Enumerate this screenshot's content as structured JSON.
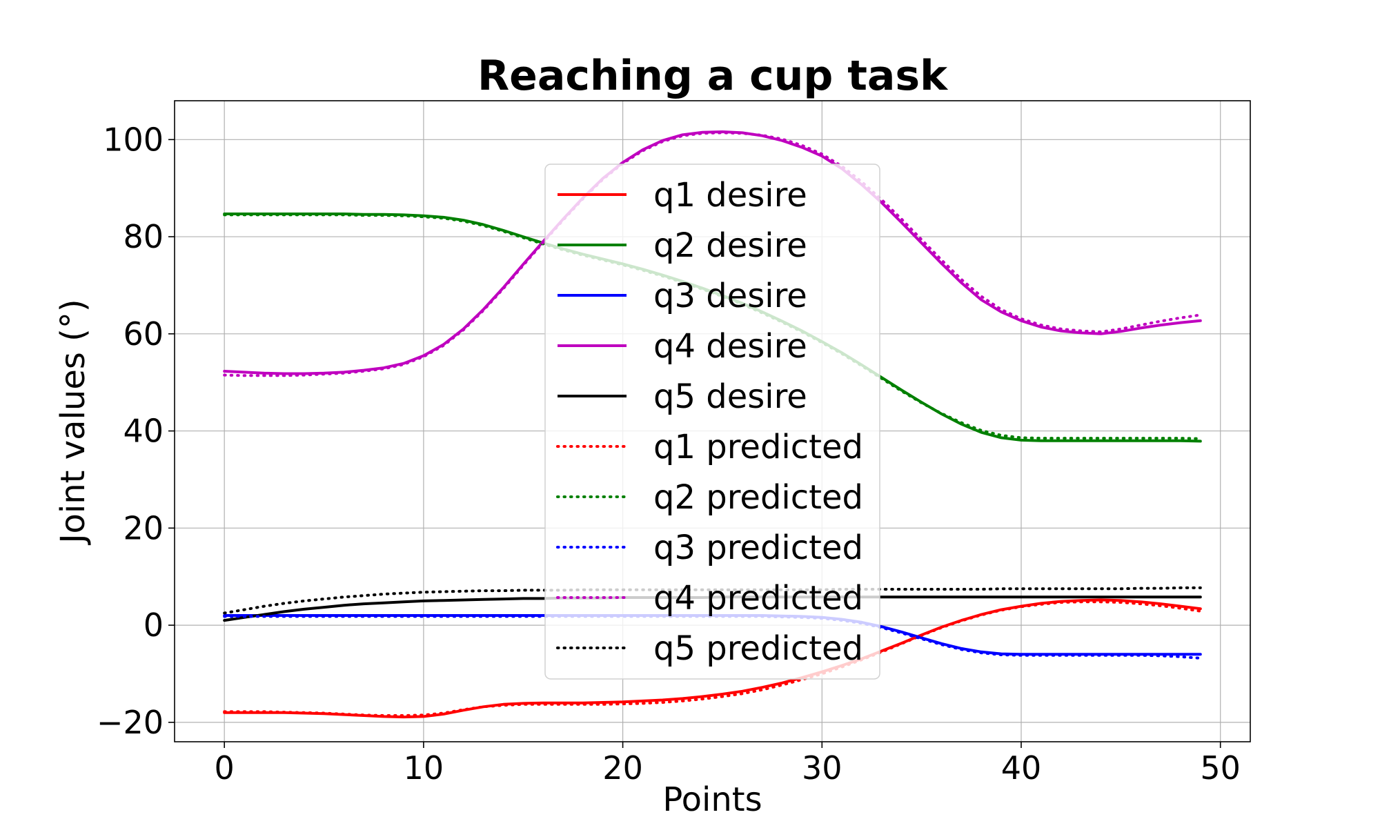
{
  "chart_data": {
    "type": "line",
    "title": "Reaching a cup task",
    "xlabel": "Points",
    "ylabel": "Joint values (°)",
    "xlim": [
      -2.5,
      51.5
    ],
    "ylim": [
      -24,
      108
    ],
    "xticks": [
      0,
      10,
      20,
      30,
      40,
      50
    ],
    "yticks": [
      -20,
      0,
      20,
      40,
      60,
      80,
      100
    ],
    "xtick_labels": [
      "0",
      "10",
      "20",
      "30",
      "40",
      "50"
    ],
    "ytick_labels": [
      "−20",
      "0",
      "20",
      "40",
      "60",
      "80",
      "100"
    ],
    "grid": true,
    "legend_position": "center",
    "x": [
      0,
      1,
      2,
      3,
      4,
      5,
      6,
      7,
      8,
      9,
      10,
      11,
      12,
      13,
      14,
      15,
      16,
      17,
      18,
      19,
      20,
      21,
      22,
      23,
      24,
      25,
      26,
      27,
      28,
      29,
      30,
      31,
      32,
      33,
      34,
      35,
      36,
      37,
      38,
      39,
      40,
      41,
      42,
      43,
      44,
      45,
      46,
      47,
      48,
      49
    ],
    "series": [
      {
        "name": "q1 desire",
        "color": "#ff0000",
        "style": "solid",
        "values": [
          -18.0,
          -18.0,
          -18.0,
          -18.0,
          -18.1,
          -18.2,
          -18.4,
          -18.6,
          -18.8,
          -18.9,
          -18.8,
          -18.3,
          -17.5,
          -16.8,
          -16.3,
          -16.1,
          -16.0,
          -16.0,
          -16.0,
          -15.9,
          -15.8,
          -15.6,
          -15.4,
          -15.1,
          -14.7,
          -14.2,
          -13.6,
          -12.8,
          -11.9,
          -10.8,
          -9.6,
          -8.3,
          -6.9,
          -5.3,
          -3.7,
          -2.0,
          -0.4,
          1.0,
          2.2,
          3.2,
          3.9,
          4.5,
          4.9,
          5.1,
          5.2,
          5.1,
          4.8,
          4.4,
          3.9,
          3.4
        ]
      },
      {
        "name": "q2 desire",
        "color": "#008000",
        "style": "solid",
        "values": [
          84.7,
          84.7,
          84.7,
          84.7,
          84.7,
          84.7,
          84.7,
          84.6,
          84.6,
          84.5,
          84.3,
          84.0,
          83.4,
          82.5,
          81.3,
          80.0,
          78.7,
          77.5,
          76.4,
          75.4,
          74.4,
          73.3,
          72.1,
          70.8,
          69.4,
          67.9,
          66.3,
          64.5,
          62.6,
          60.6,
          58.4,
          56.1,
          53.6,
          51.0,
          48.4,
          45.9,
          43.5,
          41.4,
          39.7,
          38.6,
          38.1,
          38.0,
          38.0,
          38.0,
          38.0,
          38.0,
          38.0,
          38.0,
          38.0,
          37.9
        ]
      },
      {
        "name": "q3 desire",
        "color": "#0000ff",
        "style": "solid",
        "values": [
          2.0,
          2.0,
          2.0,
          2.0,
          2.0,
          2.0,
          2.0,
          2.0,
          2.0,
          2.0,
          2.0,
          2.0,
          2.0,
          2.0,
          2.0,
          2.0,
          2.0,
          2.0,
          2.0,
          2.0,
          2.0,
          2.0,
          2.0,
          2.0,
          2.0,
          2.0,
          2.0,
          2.0,
          1.9,
          1.8,
          1.6,
          1.2,
          0.6,
          -0.3,
          -1.4,
          -2.6,
          -3.8,
          -4.8,
          -5.5,
          -5.9,
          -6.0,
          -6.0,
          -6.0,
          -6.0,
          -6.0,
          -6.0,
          -6.0,
          -6.0,
          -6.0,
          -6.0
        ]
      },
      {
        "name": "q4 desire",
        "color": "#bf00bf",
        "style": "solid",
        "values": [
          52.3,
          52.1,
          51.9,
          51.8,
          51.8,
          51.9,
          52.1,
          52.5,
          53.0,
          53.9,
          55.5,
          57.8,
          61.0,
          65.0,
          69.5,
          74.3,
          79.0,
          83.6,
          88.0,
          92.0,
          95.3,
          97.9,
          99.8,
          101.0,
          101.5,
          101.6,
          101.4,
          100.8,
          99.8,
          98.4,
          96.6,
          94.0,
          90.7,
          87.0,
          82.9,
          78.7,
          74.5,
          70.5,
          67.0,
          64.5,
          62.7,
          61.4,
          60.6,
          60.2,
          60.0,
          60.5,
          61.2,
          61.8,
          62.3,
          62.7
        ]
      },
      {
        "name": "q5 desire",
        "color": "#000000",
        "style": "solid",
        "values": [
          1.0,
          1.6,
          2.2,
          2.8,
          3.3,
          3.7,
          4.1,
          4.4,
          4.6,
          4.8,
          5.0,
          5.1,
          5.2,
          5.3,
          5.4,
          5.5,
          5.5,
          5.6,
          5.6,
          5.6,
          5.7,
          5.7,
          5.7,
          5.7,
          5.7,
          5.8,
          5.8,
          5.8,
          5.8,
          5.8,
          5.8,
          5.8,
          5.8,
          5.8,
          5.8,
          5.8,
          5.8,
          5.8,
          5.8,
          5.8,
          5.8,
          5.8,
          5.8,
          5.8,
          5.8,
          5.8,
          5.8,
          5.8,
          5.8,
          5.8
        ]
      },
      {
        "name": "q1 predicted",
        "color": "#ff0000",
        "style": "dotted",
        "values": [
          -17.8,
          -17.8,
          -17.8,
          -17.9,
          -18.0,
          -18.1,
          -18.3,
          -18.5,
          -18.6,
          -18.6,
          -18.5,
          -18.1,
          -17.4,
          -16.8,
          -16.5,
          -16.3,
          -16.3,
          -16.3,
          -16.3,
          -16.3,
          -16.2,
          -16.1,
          -15.9,
          -15.6,
          -15.2,
          -14.7,
          -14.1,
          -13.3,
          -12.3,
          -11.2,
          -10.0,
          -8.6,
          -7.1,
          -5.5,
          -3.8,
          -2.1,
          -0.5,
          0.9,
          2.1,
          3.1,
          3.8,
          4.3,
          4.7,
          4.8,
          4.8,
          4.7,
          4.4,
          4.0,
          3.5,
          2.9
        ]
      },
      {
        "name": "q2 predicted",
        "color": "#008000",
        "style": "dotted",
        "values": [
          84.5,
          84.5,
          84.5,
          84.5,
          84.5,
          84.5,
          84.5,
          84.4,
          84.4,
          84.3,
          84.1,
          83.8,
          83.2,
          82.3,
          81.1,
          79.8,
          78.5,
          77.3,
          76.2,
          75.2,
          74.2,
          73.1,
          71.9,
          70.6,
          69.2,
          67.7,
          66.1,
          64.3,
          62.4,
          60.4,
          58.2,
          55.9,
          53.4,
          50.8,
          48.2,
          45.8,
          43.6,
          41.7,
          40.1,
          39.1,
          38.6,
          38.5,
          38.5,
          38.5,
          38.5,
          38.5,
          38.5,
          38.5,
          38.5,
          38.4
        ]
      },
      {
        "name": "q3 predicted",
        "color": "#0000ff",
        "style": "dotted",
        "values": [
          1.8,
          1.8,
          1.8,
          1.8,
          1.8,
          1.8,
          1.8,
          1.8,
          1.8,
          1.8,
          1.8,
          1.8,
          1.8,
          1.8,
          1.8,
          1.8,
          1.8,
          1.8,
          1.8,
          1.8,
          1.8,
          1.8,
          1.8,
          1.8,
          1.8,
          1.8,
          1.8,
          1.8,
          1.7,
          1.6,
          1.4,
          1.0,
          0.4,
          -0.5,
          -1.6,
          -2.8,
          -4.0,
          -5.0,
          -5.7,
          -6.1,
          -6.2,
          -6.2,
          -6.2,
          -6.2,
          -6.2,
          -6.2,
          -6.2,
          -6.3,
          -6.5,
          -6.8
        ]
      },
      {
        "name": "q4 predicted",
        "color": "#bf00bf",
        "style": "dotted",
        "values": [
          51.5,
          51.4,
          51.4,
          51.4,
          51.5,
          51.7,
          51.9,
          52.3,
          52.8,
          53.7,
          55.3,
          57.6,
          60.8,
          64.8,
          69.3,
          74.1,
          78.8,
          83.4,
          87.8,
          91.8,
          95.1,
          97.7,
          99.6,
          100.8,
          101.3,
          101.4,
          101.3,
          100.9,
          100.1,
          98.8,
          97.0,
          94.5,
          91.3,
          87.6,
          83.6,
          79.4,
          75.2,
          71.2,
          67.7,
          65.0,
          63.1,
          61.8,
          61.0,
          60.6,
          60.4,
          61.0,
          61.8,
          62.6,
          63.3,
          63.9
        ]
      },
      {
        "name": "q5 predicted",
        "color": "#000000",
        "style": "dotted",
        "values": [
          2.5,
          3.2,
          3.9,
          4.5,
          5.0,
          5.4,
          5.8,
          6.1,
          6.4,
          6.6,
          6.8,
          6.9,
          7.0,
          7.1,
          7.1,
          7.2,
          7.2,
          7.2,
          7.3,
          7.3,
          7.3,
          7.3,
          7.3,
          7.3,
          7.3,
          7.3,
          7.3,
          7.3,
          7.3,
          7.3,
          7.3,
          7.4,
          7.4,
          7.4,
          7.4,
          7.4,
          7.4,
          7.4,
          7.4,
          7.5,
          7.5,
          7.5,
          7.5,
          7.5,
          7.5,
          7.5,
          7.6,
          7.6,
          7.7,
          7.7
        ]
      }
    ]
  }
}
